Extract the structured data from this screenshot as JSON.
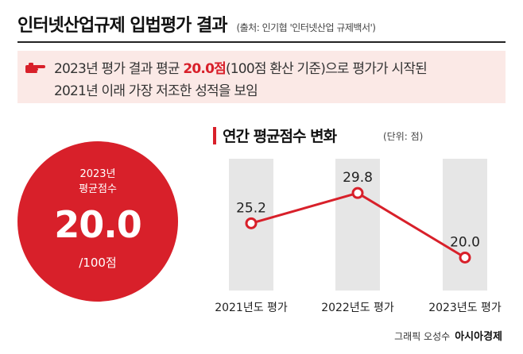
{
  "header": {
    "title": "인터넷산업규제 입법평가 결과",
    "source": "(출처: 인기협 '인터넷산업 규제백서')"
  },
  "banner": {
    "icon": "pointing-hand-icon",
    "line1_prefix": "2023년 평가 결과 평균 ",
    "line1_highlight": "20.0점",
    "line1_suffix": "(100점 환산 기준)으로 평가가 시작된",
    "line2": "2021년 이래 가장 저조한 성적을 보임"
  },
  "circle": {
    "year": "2023년",
    "label": "평균점수",
    "value": "20.0",
    "unit": "/100점"
  },
  "footer": {
    "credit": "그래픽 오성수",
    "brand": "아시아경제"
  },
  "colors": {
    "accent": "#d8202a",
    "banner_bg": "#fbe9e6",
    "column_bg": "#e6e6e6"
  },
  "chart_data": {
    "type": "line",
    "title": "연간 평균점수 변화",
    "unit_label": "(단위: 점)",
    "categories": [
      "2021년도 평가",
      "2022년도 평가",
      "2023년도 평가"
    ],
    "values": [
      25.2,
      29.8,
      20.0
    ],
    "value_labels": [
      "25.2",
      "29.8",
      "20.0"
    ],
    "ylim": [
      15,
      35
    ],
    "grid": false,
    "legend": "none"
  }
}
